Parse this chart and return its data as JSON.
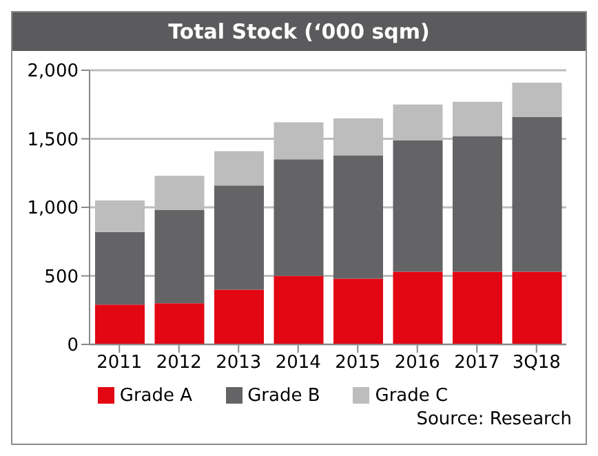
{
  "chart_data": {
    "type": "bar",
    "title": "Total Stock (‘000 sqm)",
    "stacked": true,
    "categories": [
      "2011",
      "2012",
      "2013",
      "2014",
      "2015",
      "2016",
      "2017",
      "3Q18"
    ],
    "series": [
      {
        "name": "Grade A",
        "color": "#e30613",
        "values": [
          290,
          300,
          400,
          500,
          480,
          530,
          530,
          530
        ]
      },
      {
        "name": "Grade B",
        "color": "#646466",
        "values": [
          530,
          680,
          760,
          850,
          900,
          960,
          990,
          1130
        ]
      },
      {
        "name": "Grade C",
        "color": "#bdbdbd",
        "values": [
          230,
          250,
          250,
          270,
          270,
          260,
          250,
          250
        ]
      }
    ],
    "ylim": [
      0,
      2000
    ],
    "yticks": [
      0,
      500,
      {
        "value": 1000,
        "label": "1,000"
      },
      {
        "value": 1500,
        "label": "1,500"
      },
      {
        "value": 2000,
        "label": "2,000"
      }
    ],
    "grid": "y",
    "legend": "bottom",
    "annotations": [
      "Source: Research"
    ]
  }
}
